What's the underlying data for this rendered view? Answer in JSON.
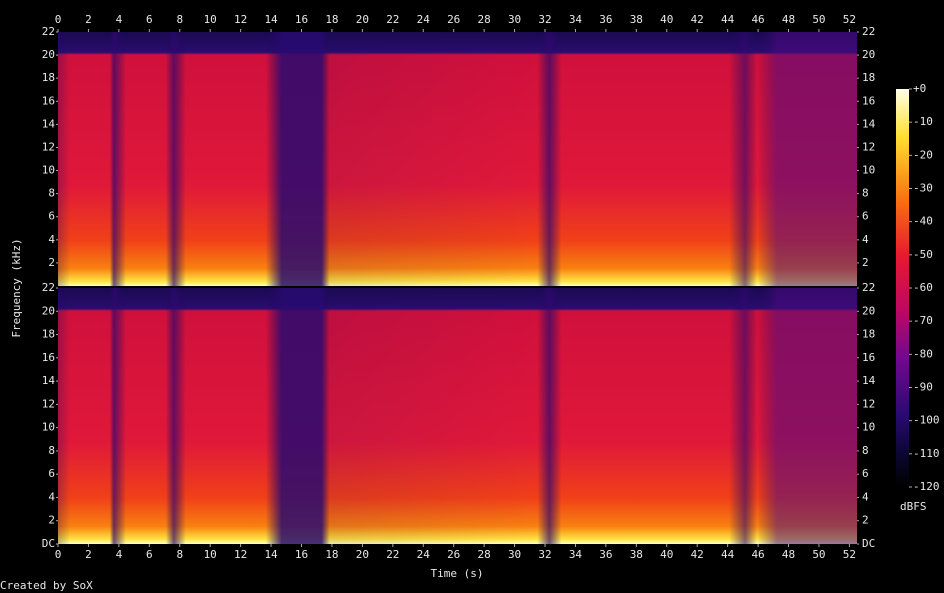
{
  "chart_data": {
    "type": "spectrogram",
    "xlabel": "Time (s)",
    "ylabel": "Frequency (kHz)",
    "footer": "Created by SoX",
    "xlim": [
      0,
      52.5
    ],
    "xticks": [
      0,
      2,
      4,
      6,
      8,
      10,
      12,
      14,
      16,
      18,
      20,
      22,
      24,
      26,
      28,
      30,
      32,
      34,
      36,
      38,
      40,
      42,
      44,
      46,
      48,
      50,
      52
    ],
    "channels": [
      {
        "ylim": [
          0,
          22
        ],
        "yticks": [
          2,
          4,
          6,
          8,
          10,
          12,
          14,
          16,
          18,
          20,
          22
        ]
      },
      {
        "ylim": [
          0,
          22
        ],
        "yticks": [
          {
            "value": 0,
            "label": "DC"
          },
          2,
          4,
          6,
          8,
          10,
          12,
          14,
          16,
          18,
          20,
          22
        ]
      }
    ],
    "colorbar": {
      "label": "dBFS",
      "lim": [
        -120,
        0
      ],
      "ticks": [
        {
          "value": 0,
          "label": "+0"
        },
        -10,
        -20,
        -30,
        -40,
        -50,
        -60,
        -70,
        -80,
        -90,
        -100,
        -110,
        -120
      ]
    }
  }
}
